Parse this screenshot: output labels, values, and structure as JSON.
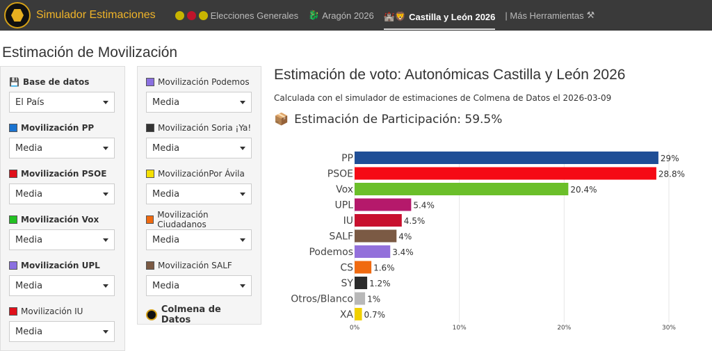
{
  "nav": {
    "brand": "Simulador Estimaciones",
    "items": [
      {
        "label": "Elecciones Generales",
        "icon": "traffic-dots-icon"
      },
      {
        "label": "Aragón 2026",
        "icon": "dragon-icon"
      },
      {
        "label": "Castilla y León 2026",
        "icon": "castle-lion-icon",
        "active": true
      },
      {
        "label": "| Más Herramientas",
        "icon": "tools-icon"
      }
    ]
  },
  "page_title": "Estimación de Movilización",
  "left_panel": [
    {
      "label": "Base de datos",
      "value": "El País",
      "color": "#ffffff",
      "bold": true
    },
    {
      "label": "Movilización PP",
      "value": "Media",
      "color": "#1a73d0",
      "bold": true
    },
    {
      "label": "Movilización PSOE",
      "value": "Media",
      "color": "#e0101a",
      "bold": true
    },
    {
      "label": "Movilización Vox",
      "value": "Media",
      "color": "#22c022",
      "bold": true
    },
    {
      "label": "Movilización UPL",
      "value": "Media",
      "color": "#8a70e0",
      "bold": true
    },
    {
      "label": "Movilización IU",
      "value": "Media",
      "color": "#e0101a",
      "bold": false
    }
  ],
  "right_panel": [
    {
      "label": "Movilización Podemos",
      "value": "Media",
      "color": "#8a70e0"
    },
    {
      "label": "Movilización Soria ¡Ya!",
      "value": "Media",
      "color": "#333333"
    },
    {
      "label": "MovilizaciónPor Ávila",
      "value": "Media",
      "color": "#f5e000"
    },
    {
      "label": "Movilización Ciudadanos",
      "value": "Media",
      "color": "#f06a10"
    },
    {
      "label": "Movilización SALF",
      "value": "Media",
      "color": "#7b5a44"
    }
  ],
  "footer_logo": "Colmena de Datos",
  "main": {
    "title": "Estimación de voto: Autonómicas Castilla y León 2026",
    "subtitle": "Calculada con el simulador de estimaciones de Colmena de Datos el 2026-03-09",
    "participation": "Estimación de Participación: 59.5%"
  },
  "chart_data": {
    "type": "bar",
    "orientation": "horizontal",
    "categories": [
      "PP",
      "PSOE",
      "Vox",
      "UPL",
      "IU",
      "SALF",
      "Podemos",
      "CS",
      "SY",
      "Otros/Blanco",
      "XA"
    ],
    "values": [
      29,
      28.8,
      20.4,
      5.4,
      4.5,
      4,
      3.4,
      1.6,
      1.2,
      1,
      0.7
    ],
    "labels": [
      "29%",
      "28.8%",
      "20.4%",
      "5.4%",
      "4.5%",
      "4%",
      "3.4%",
      "1.6%",
      "1.2%",
      "1%",
      "0.7%"
    ],
    "colors": [
      "#1f4e96",
      "#f50a15",
      "#6bbf2a",
      "#b5196b",
      "#c8102e",
      "#7b5a44",
      "#9370db",
      "#f06a10",
      "#2b2b2b",
      "#b8b8b8",
      "#f0d000"
    ],
    "xticks": [
      "0%",
      "10%",
      "20%",
      "30%"
    ],
    "xlim": [
      0,
      30
    ],
    "grid": true
  }
}
